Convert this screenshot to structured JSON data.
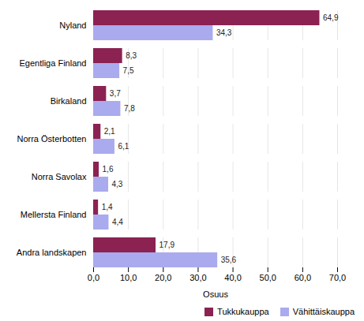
{
  "chart_data": {
    "type": "bar",
    "orientation": "horizontal",
    "categories": [
      "Andra landskapen",
      "Mellersta Finland",
      "Norra Savolax",
      "Norra Österbotten",
      "Birkaland",
      "Egentliga Finland",
      "Nyland"
    ],
    "series": [
      {
        "name": "Tukkukauppa",
        "color": "#8B2252",
        "values": [
          17.9,
          1.4,
          1.6,
          2.1,
          3.7,
          8.3,
          64.9
        ],
        "value_labels": [
          "17,9",
          "1,4",
          "1,6",
          "2,1",
          "3,7",
          "8,3",
          "64,9"
        ]
      },
      {
        "name": "Vähittäiskauppa",
        "color": "#AAAAEE",
        "values": [
          35.6,
          4.4,
          4.3,
          6.1,
          7.8,
          7.5,
          34.3
        ],
        "value_labels": [
          "35,6",
          "4,4",
          "4,3",
          "6,1",
          "7,8",
          "7,5",
          "34,3"
        ]
      }
    ],
    "xlabel": "Osuus",
    "xlim": [
      0,
      70
    ],
    "xticks": [
      {
        "value": 0,
        "label": "0,0"
      },
      {
        "value": 10,
        "label": "10,0"
      },
      {
        "value": 20,
        "label": "20,0"
      },
      {
        "value": 30,
        "label": "30,0"
      },
      {
        "value": 40,
        "label": "40,0"
      },
      {
        "value": 50,
        "label": "50,0"
      },
      {
        "value": 60,
        "label": "60,0"
      },
      {
        "value": 70,
        "label": "70,0"
      }
    ],
    "grid": true,
    "data_labels": true,
    "legend": "lower right"
  }
}
